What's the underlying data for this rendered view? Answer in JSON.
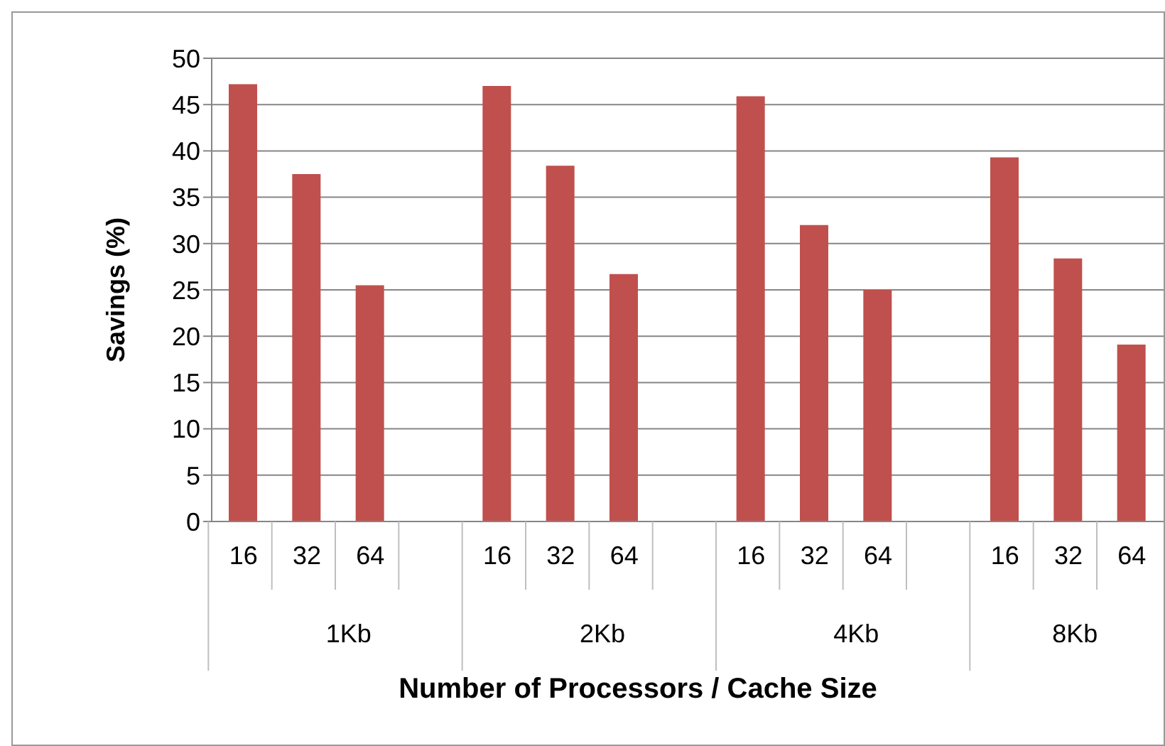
{
  "chart_data": {
    "type": "bar",
    "xlabel": "Number of Processors / Cache Size",
    "ylabel": "Savings (%)",
    "categories": [
      "16",
      "32",
      "64",
      null,
      "16",
      "32",
      "64",
      null,
      "16",
      "32",
      "64",
      null,
      "16",
      "32",
      "64"
    ],
    "values": [
      47.2,
      37.5,
      25.5,
      null,
      47.0,
      38.4,
      26.7,
      null,
      45.9,
      32.0,
      25.0,
      null,
      39.3,
      28.4,
      19.1
    ],
    "color": "#c0504d",
    "ylim": [
      0,
      50
    ],
    "yticks": [
      0,
      5,
      10,
      15,
      20,
      25,
      30,
      35,
      40,
      45,
      50
    ],
    "grid": "y",
    "annotations": [
      "1Kb",
      "2Kb",
      "4Kb",
      "8Kb"
    ]
  }
}
